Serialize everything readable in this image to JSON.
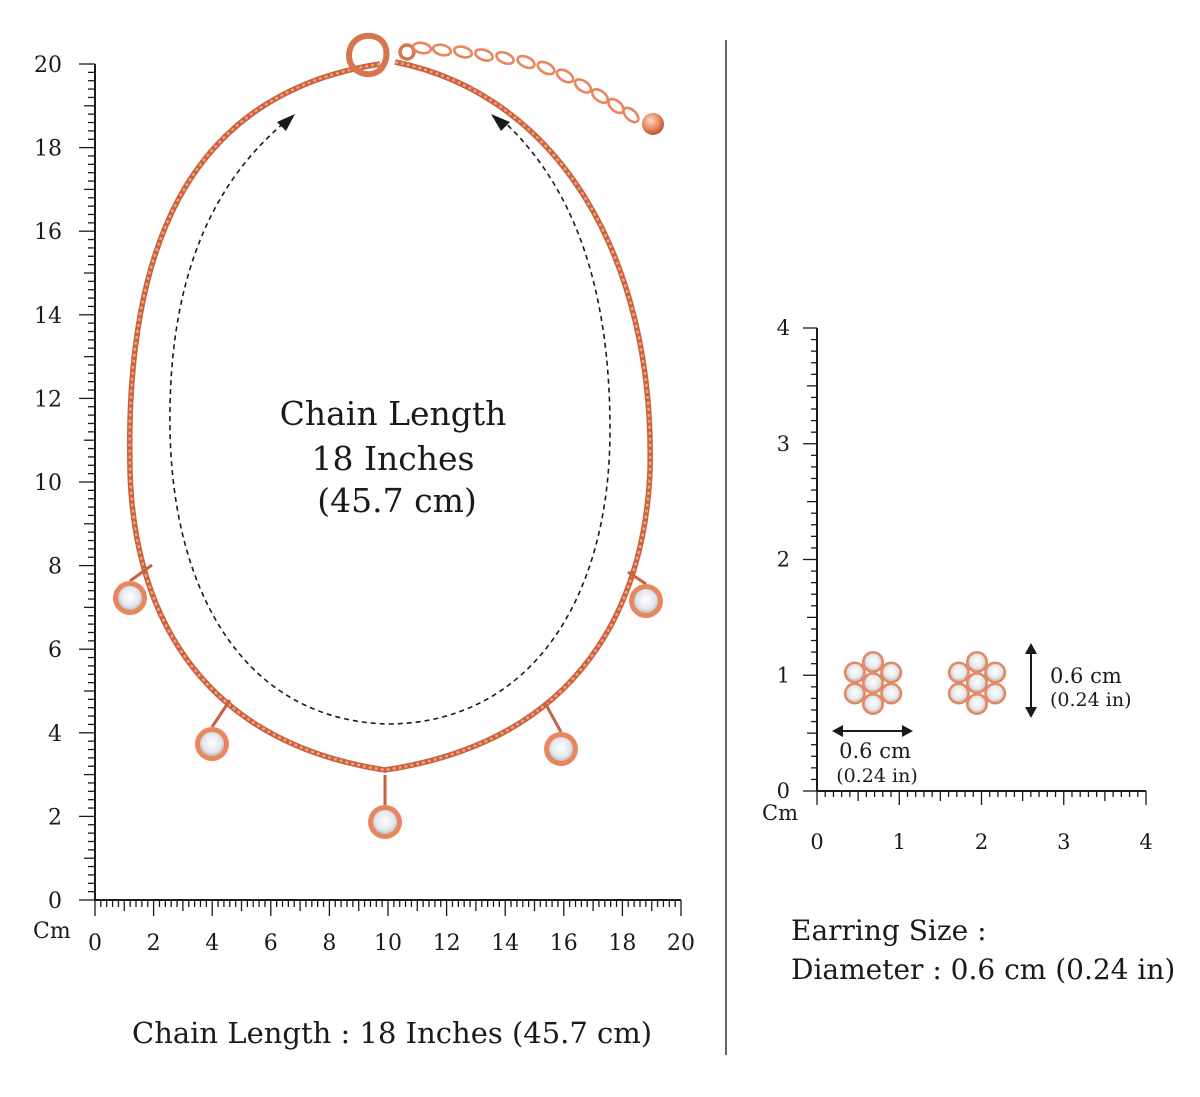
{
  "colors": {
    "chain": "#e8865e",
    "chain_dark": "#c9623e",
    "stone": "#eef1f4",
    "ruler": "#1a1a1a",
    "divider": "#333333"
  },
  "necklace_ruler": {
    "unit_label": "Cm",
    "y_labels": [
      "0",
      "2",
      "4",
      "6",
      "8",
      "10",
      "12",
      "14",
      "16",
      "18",
      "20"
    ],
    "x_labels": [
      "0",
      "2",
      "4",
      "6",
      "8",
      "10",
      "12",
      "14",
      "16",
      "18",
      "20"
    ]
  },
  "center_label": {
    "line1": "Chain Length",
    "line2": "18 Inches",
    "line3": "(45.7 cm)"
  },
  "earring_ruler": {
    "unit_label": "Cm",
    "y_labels": [
      "0",
      "1",
      "2",
      "3",
      "4"
    ],
    "x_labels": [
      "0",
      "1",
      "2",
      "3",
      "4"
    ]
  },
  "earring_dims": {
    "width_cm": "0.6 cm",
    "width_in": "(0.24 in)",
    "height_cm": "0.6 cm",
    "height_in": "(0.24 in)"
  },
  "captions": {
    "chain": "Chain Length : 18 Inches (45.7 cm)",
    "earring_title": "Earring Size :",
    "earring_diameter": "Diameter : 0.6 cm (0.24 in)"
  }
}
